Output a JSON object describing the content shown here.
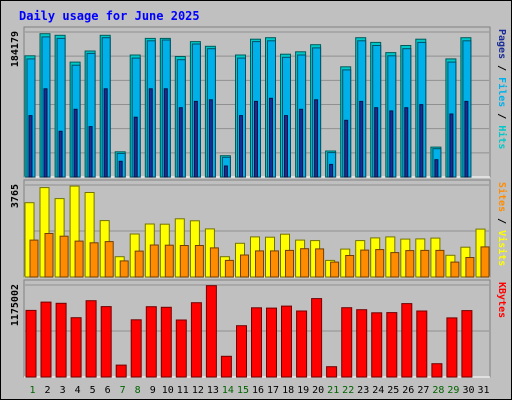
{
  "chart_data": {
    "type": "bar",
    "title": "Daily usage for June 2025",
    "categories": [
      "1",
      "2",
      "3",
      "4",
      "5",
      "6",
      "7",
      "8",
      "9",
      "10",
      "11",
      "12",
      "13",
      "14",
      "15",
      "16",
      "17",
      "18",
      "19",
      "20",
      "21",
      "22",
      "23",
      "24",
      "25",
      "26",
      "27",
      "28",
      "29",
      "30",
      "31"
    ],
    "weekend_days": [
      "1",
      "7",
      "8",
      "14",
      "15",
      "21",
      "22",
      "28",
      "29"
    ],
    "panels": [
      {
        "id": "hits",
        "max_label": "184179",
        "ylim": [
          0,
          184179
        ],
        "grid": true,
        "right_label": [
          "Pages",
          "Files",
          "Hits"
        ],
        "series": [
          {
            "name": "Hits",
            "color": "#00c8c8",
            "values": [
              154000,
              182000,
              180000,
              146000,
              160000,
              180000,
              32000,
              155000,
              176000,
              176000,
              153000,
              172000,
              166000,
              27000,
              155000,
              175000,
              177000,
              156000,
              159000,
              168000,
              33000,
              140000,
              177000,
              171000,
              158000,
              167000,
              175000,
              38000,
              150000,
              177000,
              0
            ]
          },
          {
            "name": "Files",
            "color": "#00b0e8",
            "values": [
              150000,
              178000,
              176000,
              142000,
              157000,
              177000,
              30000,
              151000,
              173000,
              174000,
              149000,
              169000,
              163000,
              25000,
              151000,
              172000,
              173000,
              152000,
              155000,
              164000,
              31000,
              136000,
              173000,
              167000,
              154000,
              163000,
              171000,
              36000,
              146000,
              173000,
              0
            ]
          },
          {
            "name": "Pages",
            "color": "#1a2c96",
            "values": [
              78000,
              112000,
              58000,
              86000,
              64000,
              112000,
              20000,
              76000,
              112000,
              112000,
              88000,
              96000,
              98000,
              14000,
              78000,
              96000,
              100000,
              78000,
              86000,
              98000,
              16000,
              72000,
              96000,
              88000,
              84000,
              88000,
              92000,
              22000,
              80000,
              96000,
              0
            ]
          }
        ]
      },
      {
        "id": "visits",
        "max_label": "3765",
        "ylim": [
          0,
          3765
        ],
        "grid": true,
        "right_label": [
          "Sites",
          "Visits"
        ],
        "series": [
          {
            "name": "Visits",
            "color": "#ffff00",
            "values": [
              3040,
              3660,
              3210,
              3720,
              3460,
              2310,
              830,
              1760,
              2170,
              2160,
              2380,
              2300,
              1970,
              830,
              1380,
              1640,
              1630,
              1750,
              1510,
              1490,
              680,
              1140,
              1490,
              1600,
              1640,
              1550,
              1560,
              1590,
              890,
              1220,
              1960
            ]
          },
          {
            "name": "Sites",
            "color": "#ff8c00",
            "values": [
              1510,
              1780,
              1670,
              1470,
              1400,
              1450,
              660,
              1060,
              1310,
              1300,
              1290,
              1290,
              1190,
              680,
              900,
              1070,
              1070,
              1090,
              1160,
              1150,
              610,
              880,
              1100,
              1120,
              1000,
              1080,
              1090,
              1090,
              610,
              800,
              1230
            ]
          }
        ]
      },
      {
        "id": "kbytes",
        "max_label": "1175002",
        "ylim": [
          0,
          1175002
        ],
        "grid": true,
        "right_label": [
          "KBytes"
        ],
        "series": [
          {
            "name": "KBytes",
            "color": "#ff0000",
            "values": [
              850000,
              956000,
              941000,
              758000,
              975000,
              899000,
              152000,
              731000,
              898000,
              890000,
              728000,
              949000,
              1166000,
              264000,
              655000,
              884000,
              880000,
              905000,
              843000,
              1001000,
              132000,
              885000,
              860000,
              820000,
              822000,
              937000,
              843000,
              170000,
              755000,
              848000,
              0
            ]
          }
        ]
      }
    ]
  }
}
